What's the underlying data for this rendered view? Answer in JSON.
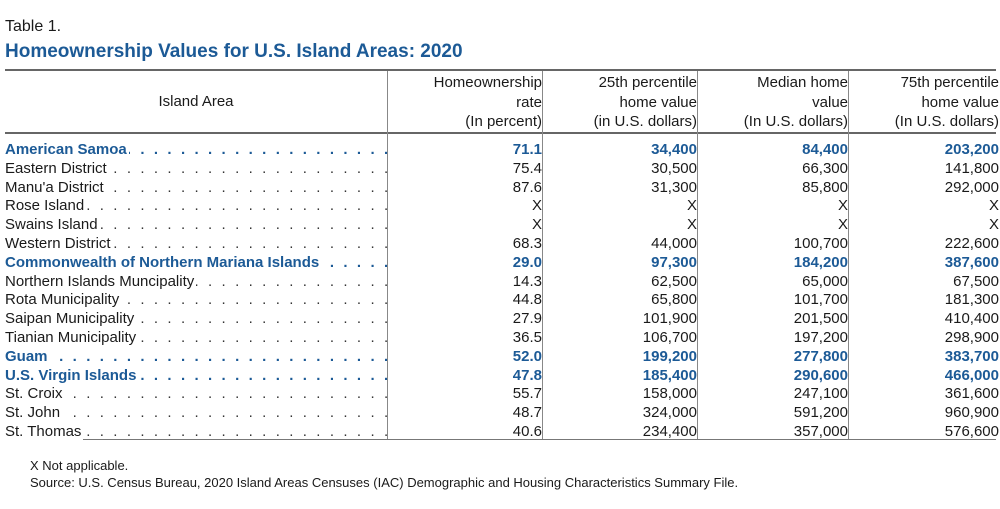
{
  "table_label": "Table 1.",
  "title": "Homeownership Values for U.S. Island Areas: 2020",
  "headers": [
    {
      "lines": [
        "Island Area"
      ]
    },
    {
      "lines": [
        "Homeownership",
        "rate",
        "(In percent)"
      ]
    },
    {
      "lines": [
        "25th percentile",
        "home value",
        "(in U.S. dollars)"
      ]
    },
    {
      "lines": [
        "Median home",
        "value",
        "(In U.S. dollars)"
      ]
    },
    {
      "lines": [
        "75th percentile",
        "home value",
        "(In U.S. dollars)"
      ]
    }
  ],
  "rows": [
    {
      "name": "American Samoa",
      "bold": true,
      "values": [
        "71.1",
        "34,400",
        "84,400",
        "203,200"
      ]
    },
    {
      "name": "Eastern District",
      "bold": false,
      "values": [
        "75.4",
        "30,500",
        "66,300",
        "141,800"
      ]
    },
    {
      "name": "Manu'a District",
      "bold": false,
      "values": [
        "87.6",
        "31,300",
        "85,800",
        "292,000"
      ]
    },
    {
      "name": "Rose Island",
      "bold": false,
      "values": [
        "X",
        "X",
        "X",
        "X"
      ]
    },
    {
      "name": "Swains Island",
      "bold": false,
      "values": [
        "X",
        "X",
        "X",
        "X"
      ]
    },
    {
      "name": "Western District",
      "bold": false,
      "values": [
        "68.3",
        "44,000",
        "100,700",
        "222,600"
      ]
    },
    {
      "name": "Commonwealth of Northern Mariana Islands",
      "bold": true,
      "values": [
        "29.0",
        "97,300",
        "184,200",
        "387,600"
      ]
    },
    {
      "name": "Northern Islands Muncipality",
      "bold": false,
      "values": [
        "14.3",
        "62,500",
        "65,000",
        "67,500"
      ]
    },
    {
      "name": "Rota Municipality",
      "bold": false,
      "values": [
        "44.8",
        "65,800",
        "101,700",
        "181,300"
      ]
    },
    {
      "name": "Saipan Municipality",
      "bold": false,
      "values": [
        "27.9",
        "101,900",
        "201,500",
        "410,400"
      ]
    },
    {
      "name": "Tianian Municipality",
      "bold": false,
      "values": [
        "36.5",
        "106,700",
        "197,200",
        "298,900"
      ]
    },
    {
      "name": "Guam",
      "bold": true,
      "values": [
        "52.0",
        "199,200",
        "277,800",
        "383,700"
      ]
    },
    {
      "name": "U.S. Virgin Islands",
      "bold": true,
      "values": [
        "47.8",
        "185,400",
        "290,600",
        "466,000"
      ]
    },
    {
      "name": "St. Croix",
      "bold": false,
      "values": [
        "55.7",
        "158,000",
        "247,100",
        "361,600"
      ]
    },
    {
      "name": "St. John",
      "bold": false,
      "values": [
        "48.7",
        "324,000",
        "591,200",
        "960,900"
      ]
    },
    {
      "name": "St. Thomas",
      "bold": false,
      "values": [
        "40.6",
        "234,400",
        "357,000",
        "576,600"
      ]
    }
  ],
  "notes": {
    "not_applicable": "X Not applicable.",
    "source": "Source: U.S. Census Bureau, 2020 Island Areas Censuses (IAC) Demographic and Housing Characteristics Summary File."
  },
  "colors": {
    "title": "#1c5a96",
    "bold_row": "#1c5a96",
    "rules": "#666666"
  }
}
